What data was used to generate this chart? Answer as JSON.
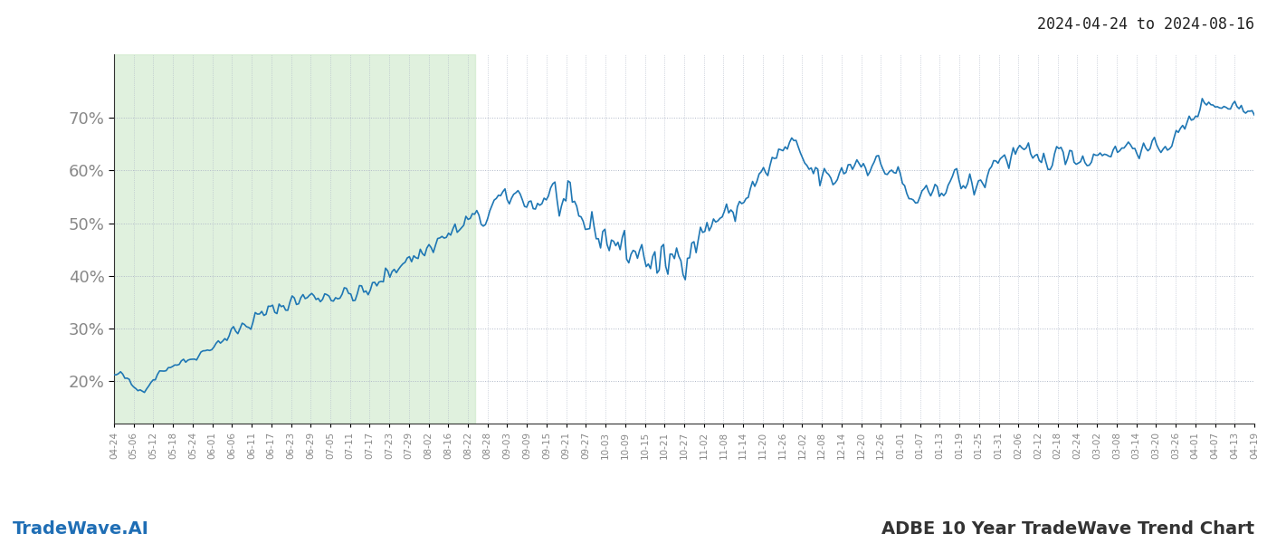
{
  "title_top_right": "2024-04-24 to 2024-08-16",
  "footer_left": "TradeWave.AI",
  "footer_right": "ADBE 10 Year TradeWave Trend Chart",
  "line_color": "#1f77b4",
  "line_width": 1.2,
  "shade_color": "#c8e6c4",
  "shade_alpha": 0.55,
  "background_color": "#ffffff",
  "grid_color": "#b0b8c8",
  "grid_style": ":",
  "ytick_values": [
    20,
    30,
    40,
    50,
    60,
    70
  ],
  "ylim": [
    12,
    82
  ],
  "shade_start": "2024-04-24",
  "shade_end": "2024-08-16",
  "x_start": "2024-04-24",
  "x_end": "2025-04-19",
  "xtick_labels": [
    "04-24",
    "05-06",
    "05-12",
    "05-18",
    "05-24",
    "06-01",
    "06-06",
    "06-11",
    "06-17",
    "06-23",
    "06-29",
    "07-05",
    "07-11",
    "07-17",
    "07-23",
    "07-29",
    "08-02",
    "08-16",
    "08-22",
    "08-28",
    "09-03",
    "09-09",
    "09-15",
    "09-21",
    "09-27",
    "10-03",
    "10-09",
    "10-15",
    "10-21",
    "10-27",
    "11-02",
    "11-08",
    "11-14",
    "11-20",
    "11-26",
    "12-02",
    "12-08",
    "12-14",
    "12-20",
    "12-26",
    "01-01",
    "01-07",
    "01-13",
    "01-19",
    "01-25",
    "01-31",
    "02-06",
    "02-12",
    "02-18",
    "02-24",
    "03-02",
    "03-08",
    "03-14",
    "03-20",
    "03-26",
    "04-01",
    "04-07",
    "04-13",
    "04-19"
  ],
  "anchor_points": {
    "0": 21.0,
    "5": 20.5,
    "10": 18.5,
    "20": 21.5,
    "30": 23.5,
    "50": 28.0,
    "70": 33.0,
    "90": 36.0,
    "110": 36.5,
    "120": 38.0,
    "130": 42.0,
    "140": 44.0,
    "150": 47.0,
    "160": 49.5,
    "165": 51.0,
    "170": 50.5,
    "175": 54.0,
    "180": 54.5,
    "185": 55.5,
    "190": 54.0,
    "195": 53.5,
    "200": 55.5,
    "205": 54.0,
    "210": 52.0,
    "215": 50.5,
    "220": 49.0,
    "225": 47.5,
    "230": 46.5,
    "235": 45.0,
    "240": 44.5,
    "245": 43.5,
    "250": 41.5,
    "255": 43.0,
    "260": 44.0,
    "265": 45.5,
    "270": 48.0,
    "275": 50.0,
    "280": 51.5,
    "285": 52.0,
    "290": 55.0,
    "295": 57.5,
    "300": 60.0,
    "305": 62.5,
    "310": 64.5,
    "315": 63.0,
    "320": 60.0,
    "325": 59.0,
    "330": 58.0,
    "335": 60.0,
    "340": 61.5,
    "345": 61.5,
    "350": 61.5,
    "355": 60.0,
    "360": 59.5,
    "365": 55.0,
    "370": 54.5,
    "375": 55.0,
    "380": 56.5,
    "385": 58.5,
    "390": 57.5,
    "395": 57.0,
    "400": 58.0,
    "405": 62.0,
    "410": 62.0,
    "415": 63.5,
    "420": 62.5,
    "425": 61.5,
    "430": 62.5,
    "435": 63.0,
    "440": 63.5,
    "445": 62.0,
    "450": 62.5,
    "455": 63.5,
    "460": 63.5,
    "465": 64.5,
    "470": 64.5,
    "475": 63.5,
    "480": 64.5,
    "485": 65.0,
    "490": 67.0,
    "495": 69.5,
    "500": 72.0,
    "505": 73.0,
    "510": 72.0,
    "515": 72.5,
    "520": 71.5,
    "525": 72.0
  },
  "n_points": 526
}
